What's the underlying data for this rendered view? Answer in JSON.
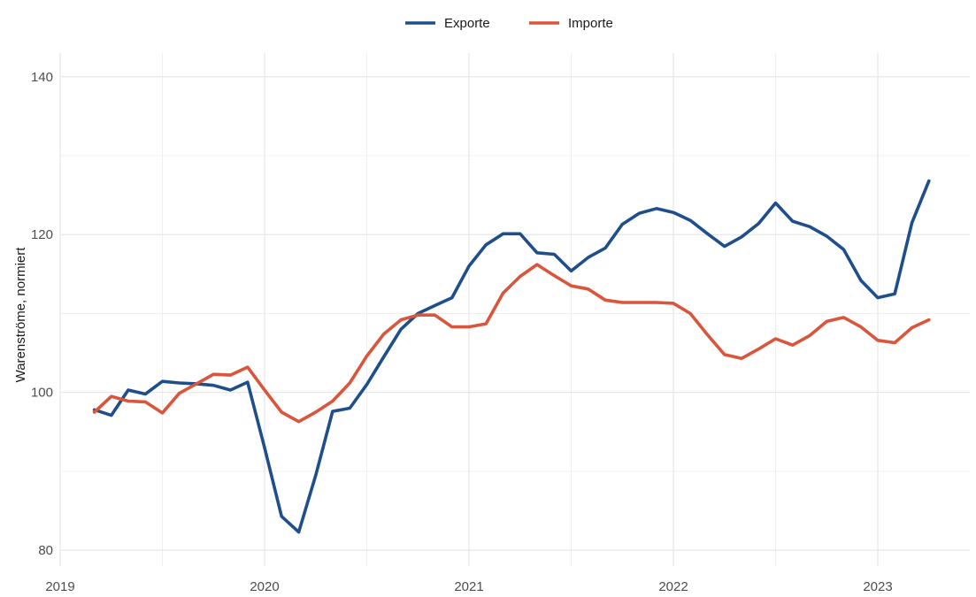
{
  "chart_data": {
    "type": "line",
    "title": "",
    "xlabel": "",
    "ylabel": "Warenströme, normiert",
    "xlim": [
      2019.0,
      2023.45
    ],
    "ylim": [
      78,
      143
    ],
    "x_ticks": [
      {
        "value": 2019,
        "label": "2019"
      },
      {
        "value": 2020,
        "label": "2020"
      },
      {
        "value": 2021,
        "label": "2021"
      },
      {
        "value": 2022,
        "label": "2022"
      },
      {
        "value": 2023,
        "label": "2023"
      }
    ],
    "y_ticks": [
      {
        "value": 80,
        "label": "80"
      },
      {
        "value": 100,
        "label": "100"
      },
      {
        "value": 120,
        "label": "120"
      },
      {
        "value": 140,
        "label": "140"
      }
    ],
    "grid": true,
    "legend_position": "top",
    "series": [
      {
        "name": "Exporte",
        "color": "#1f4e8c",
        "x": [
          2019.167,
          2019.25,
          2019.333,
          2019.417,
          2019.5,
          2019.583,
          2019.667,
          2019.75,
          2019.833,
          2019.917,
          2020.0,
          2020.083,
          2020.167,
          2020.25,
          2020.333,
          2020.417,
          2020.5,
          2020.583,
          2020.667,
          2020.75,
          2020.833,
          2020.917,
          2021.0,
          2021.083,
          2021.167,
          2021.25,
          2021.333,
          2021.417,
          2021.5,
          2021.583,
          2021.667,
          2021.75,
          2021.833,
          2021.917,
          2022.0,
          2022.083,
          2022.167,
          2022.25,
          2022.333,
          2022.417,
          2022.5,
          2022.583,
          2022.667,
          2022.75,
          2022.833,
          2022.917,
          2023.0,
          2023.083,
          2023.167,
          2023.25
        ],
        "values": [
          97.8,
          97.1,
          100.3,
          99.8,
          101.4,
          101.2,
          101.1,
          100.9,
          100.3,
          101.3,
          93.0,
          84.3,
          82.3,
          89.5,
          97.6,
          98.0,
          101.0,
          104.5,
          108.0,
          110.0,
          111.0,
          112.0,
          116.0,
          118.7,
          120.1,
          120.1,
          117.7,
          117.5,
          115.4,
          117.1,
          118.3,
          121.3,
          122.7,
          123.3,
          122.8,
          121.8,
          120.1,
          118.5,
          119.7,
          121.4,
          124.0,
          121.7,
          121.0,
          119.8,
          118.1,
          114.2,
          112.0,
          112.5,
          121.5,
          126.8
        ]
      },
      {
        "name": "Importe",
        "color": "#d9553b",
        "x": [
          2019.167,
          2019.25,
          2019.333,
          2019.417,
          2019.5,
          2019.583,
          2019.667,
          2019.75,
          2019.833,
          2019.917,
          2020.0,
          2020.083,
          2020.167,
          2020.25,
          2020.333,
          2020.417,
          2020.5,
          2020.583,
          2020.667,
          2020.75,
          2020.833,
          2020.917,
          2021.0,
          2021.083,
          2021.167,
          2021.25,
          2021.333,
          2021.417,
          2021.5,
          2021.583,
          2021.667,
          2021.75,
          2021.833,
          2021.917,
          2022.0,
          2022.083,
          2022.167,
          2022.25,
          2022.333,
          2022.417,
          2022.5,
          2022.583,
          2022.667,
          2022.75,
          2022.833,
          2022.917,
          2023.0,
          2023.083,
          2023.167,
          2023.25
        ],
        "values": [
          97.5,
          99.5,
          98.9,
          98.8,
          97.4,
          99.9,
          101.1,
          102.3,
          102.2,
          103.2,
          100.3,
          97.5,
          96.3,
          97.5,
          98.9,
          101.2,
          104.6,
          107.4,
          109.2,
          109.8,
          109.8,
          108.3,
          108.3,
          108.7,
          112.6,
          114.7,
          116.2,
          114.8,
          113.5,
          113.1,
          111.7,
          111.4,
          111.4,
          111.4,
          111.3,
          110.0,
          107.3,
          104.8,
          104.3,
          105.5,
          106.8,
          106.0,
          107.2,
          109.0,
          109.5,
          108.3,
          106.6,
          106.3,
          108.2,
          109.2
        ]
      }
    ]
  }
}
